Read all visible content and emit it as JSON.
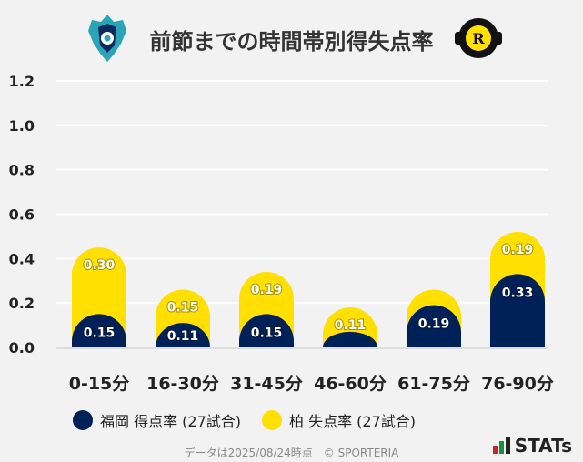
{
  "chart_data": {
    "type": "bar",
    "stacked": true,
    "title": "前節までの時間帯別得失点率",
    "categories": [
      "0-15分",
      "16-30分",
      "31-45分",
      "46-60分",
      "61-75分",
      "76-90分"
    ],
    "series": [
      {
        "name": "福岡 得点率 (27試合)",
        "color": "#002157",
        "values": [
          0.15,
          0.11,
          0.15,
          0.07,
          0.19,
          0.33
        ],
        "labels": [
          "0.15",
          "0.11",
          "0.15",
          "",
          "0.19",
          "0.33"
        ]
      },
      {
        "name": "柏 失点率 (27試合)",
        "color": "#ffe000",
        "values": [
          0.3,
          0.15,
          0.19,
          0.11,
          0.07,
          0.19
        ],
        "labels": [
          "0.30",
          "0.15",
          "0.19",
          "0.11",
          "",
          "0.19"
        ]
      }
    ],
    "yticks": [
      "0.0",
      "0.2",
      "0.4",
      "0.6",
      "0.8",
      "1.0",
      "1.2"
    ],
    "ylim": [
      0,
      1.2
    ],
    "grid": true,
    "legend_position": "bottom-left"
  },
  "footer": "データは2025/08/24時点　© SPORTERIA",
  "brand": "STATs",
  "logos": {
    "left": "Avispa Fukuoka emblem",
    "right": "KASHIWA REYSOL"
  }
}
